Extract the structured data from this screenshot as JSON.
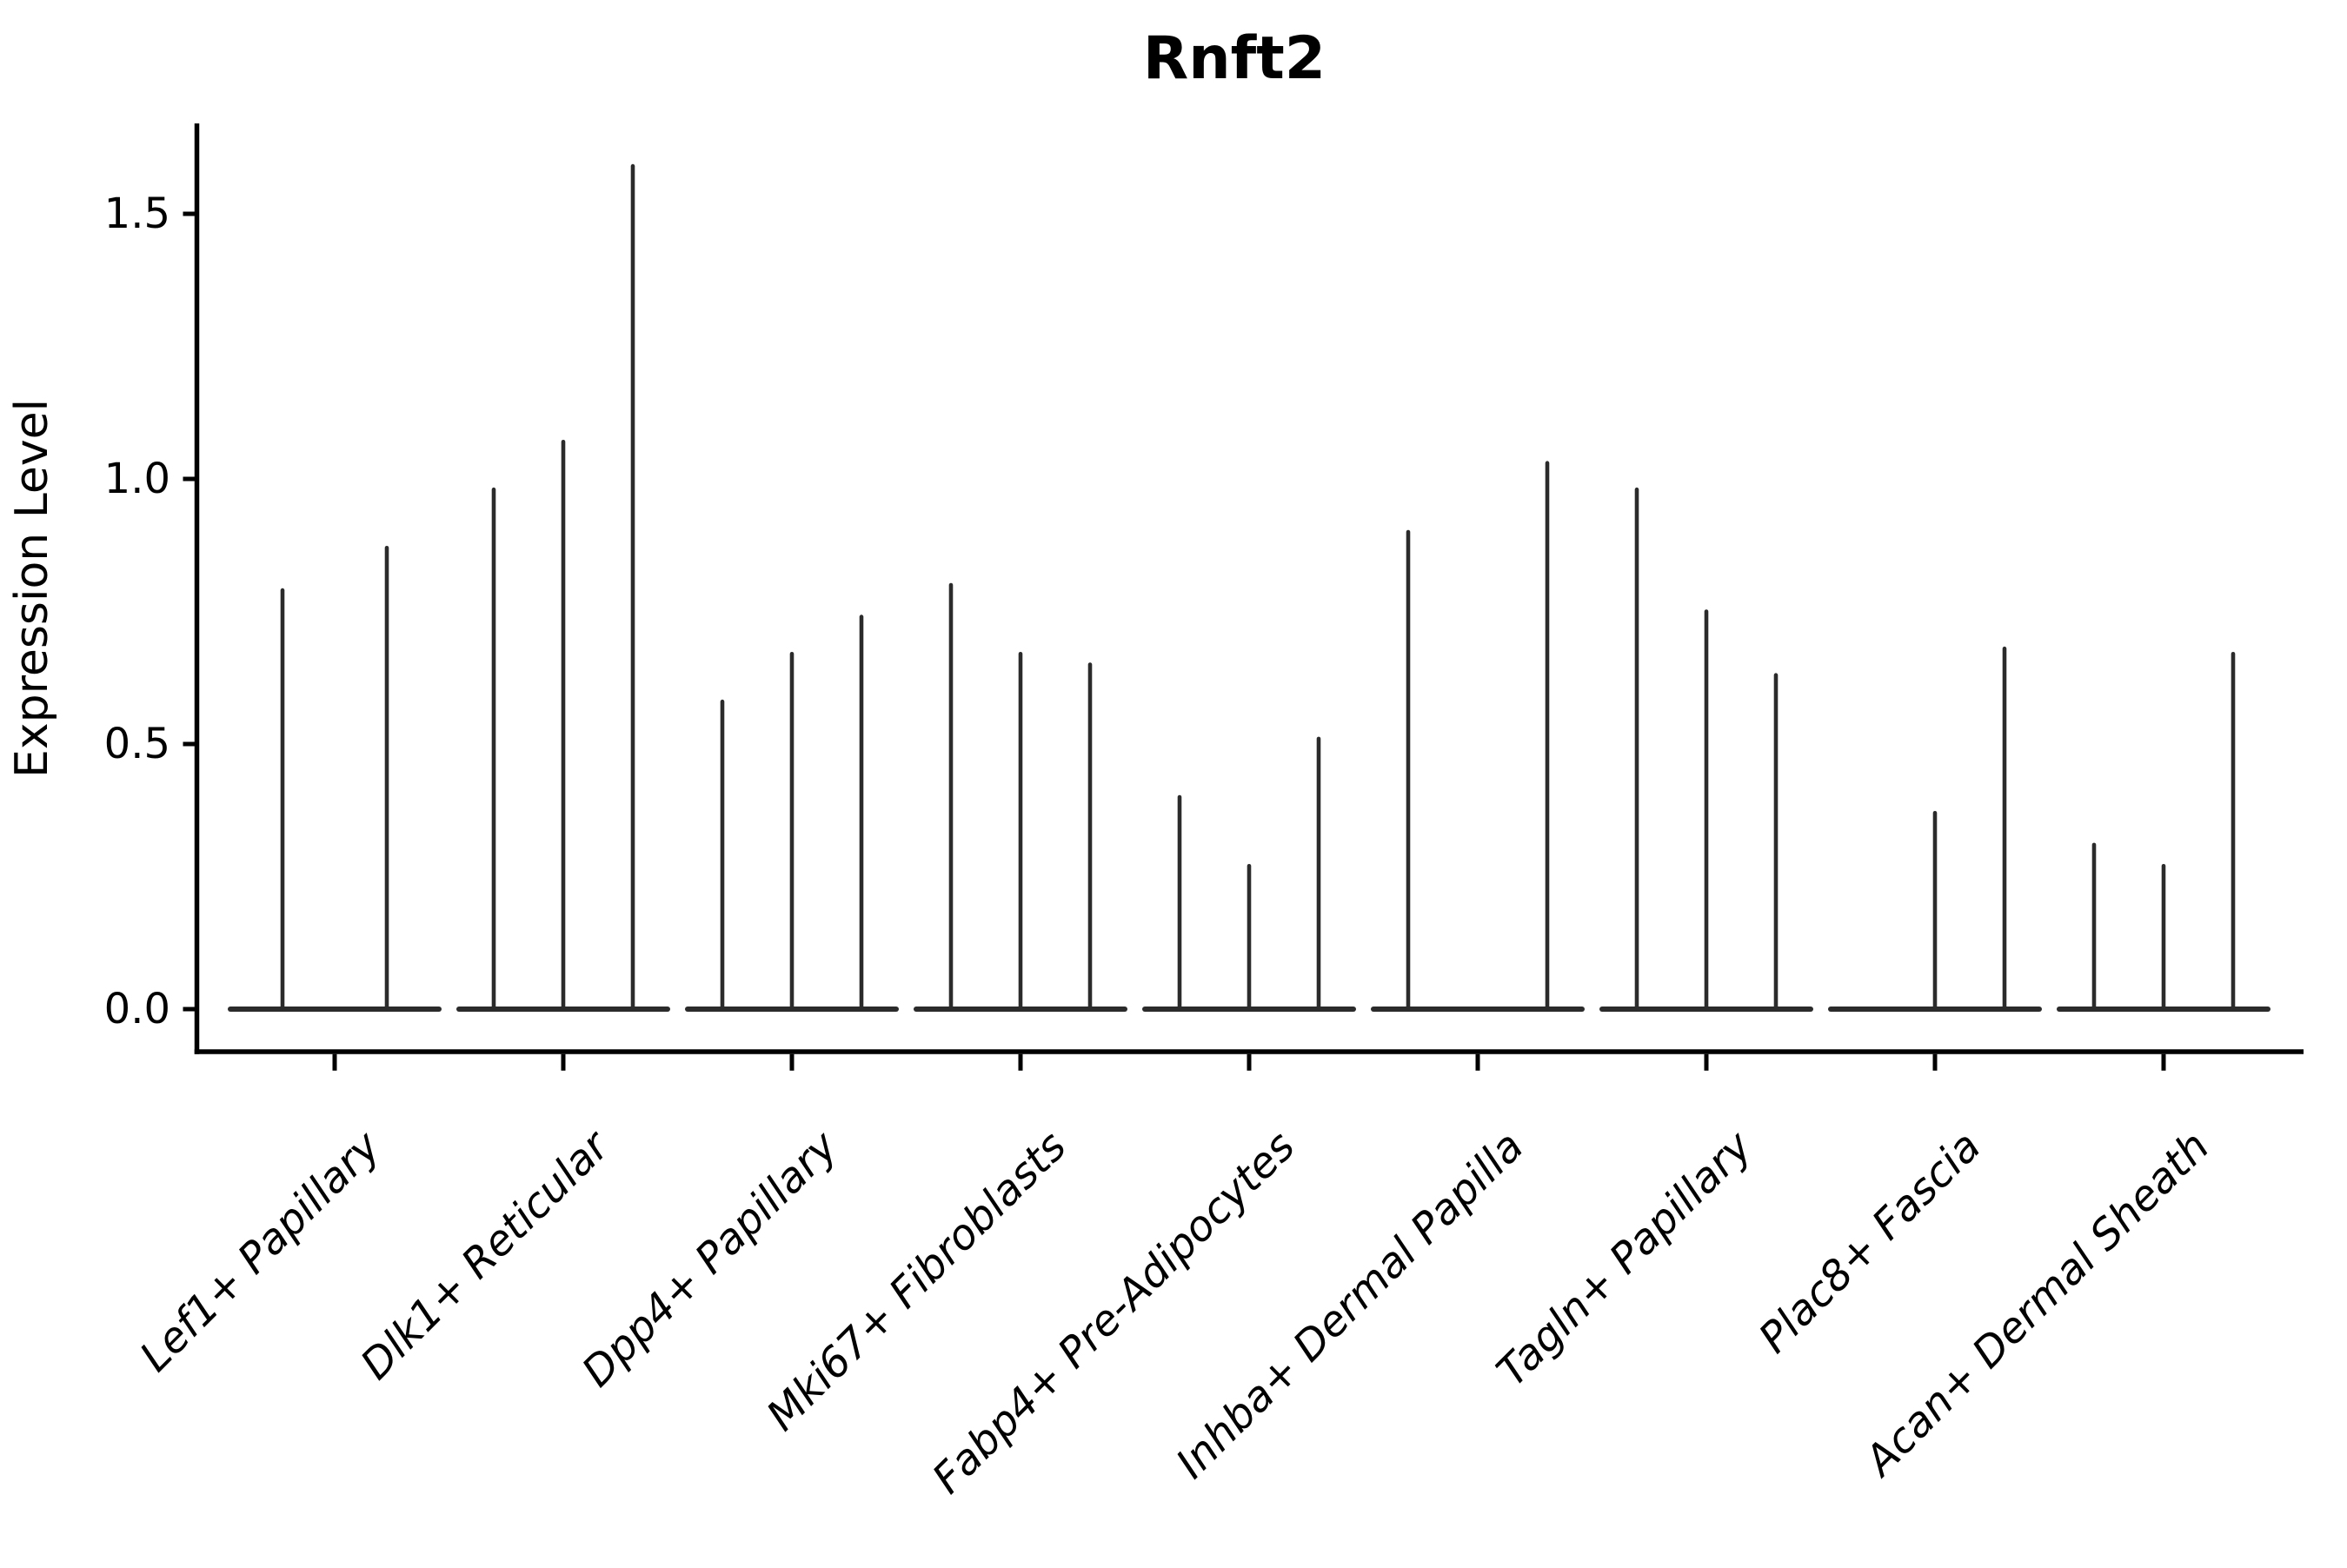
{
  "figure": {
    "background": "#ffffff"
  },
  "chart_data": {
    "type": "violin",
    "title": "Rnft2",
    "xlabel": "",
    "ylabel": "Expression Level",
    "ylim": [
      0,
      1.66
    ],
    "yticks": [
      0.0,
      0.5,
      1.0,
      1.5
    ],
    "ytick_labels": [
      "0.0",
      "0.5",
      "1.0",
      "1.5"
    ],
    "grid": false,
    "legend": "none",
    "style_note": "needle-thin dark violins on a white background; each category shows a flat baseline at 0 with narrow spikes up to the violin maximum; left and bottom spines only; x labels rotated 45 degrees, italic",
    "categories": [
      "Lef1+ Papillary",
      "Dlk1+ Reticular",
      "Dpp4+ Papillary",
      "Mki67+ Fibroblasts",
      "Fabp4+ Pre-Adipocytes",
      "Inhba+ Dermal Papilla",
      "Tagln+ Papillary",
      "Plac8+ Fascia",
      "Acan+ Dermal Sheath"
    ],
    "violins": [
      {
        "category": "Lef1+ Papillary",
        "maxima": [
          0.79,
          0.87
        ]
      },
      {
        "category": "Dlk1+ Reticular",
        "maxima": [
          0.98,
          1.07,
          1.59
        ]
      },
      {
        "category": "Dpp4+ Papillary",
        "maxima": [
          0.58,
          0.67,
          0.74
        ]
      },
      {
        "category": "Mki67+ Fibroblasts",
        "maxima": [
          0.8,
          0.67,
          0.65
        ]
      },
      {
        "category": "Fabp4+ Pre-Adipocytes",
        "maxima": [
          0.4,
          0.27,
          0.51
        ]
      },
      {
        "category": "Inhba+ Dermal Papilla",
        "maxima": [
          0.9,
          0.0,
          1.03
        ]
      },
      {
        "category": "Tagln+ Papillary",
        "maxima": [
          0.98,
          0.75,
          0.63
        ]
      },
      {
        "category": "Plac8+ Fascia",
        "maxima": [
          0.0,
          0.37,
          0.68
        ]
      },
      {
        "category": "Acan+ Dermal Sheath",
        "maxima": [
          0.31,
          0.27,
          0.67
        ]
      }
    ],
    "colors": {
      "violin": "#2b2b2b",
      "axis": "#000000",
      "text": "#000000",
      "background": "#ffffff"
    }
  }
}
